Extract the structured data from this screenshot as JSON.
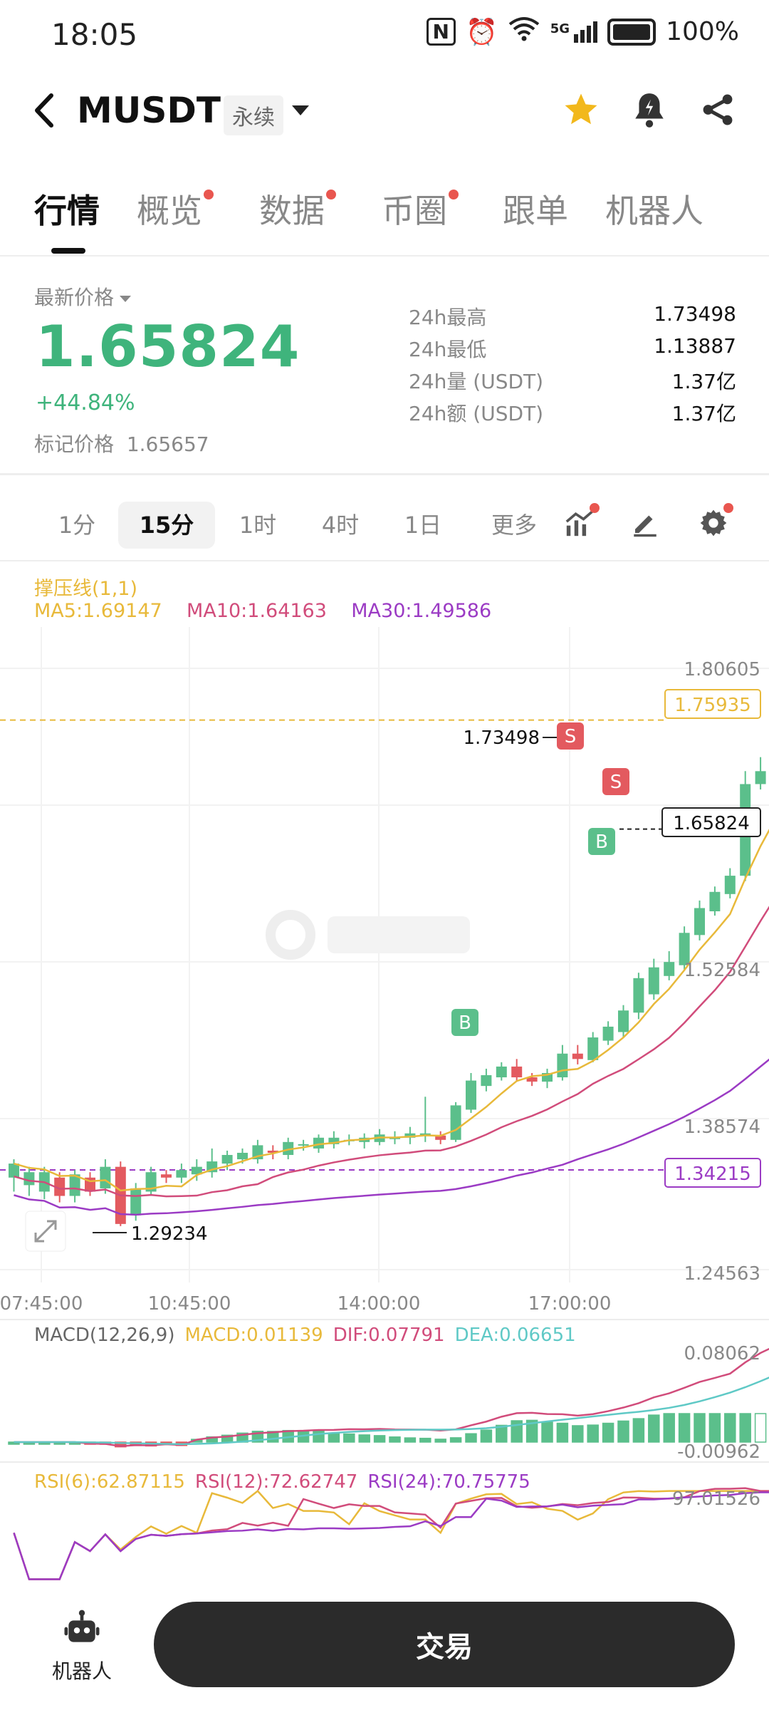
{
  "status_bar": {
    "time": "18:05",
    "network": "5G",
    "battery": "100%"
  },
  "header": {
    "symbol": "MUSDT",
    "contract_type": "永续",
    "icons": [
      "back-icon",
      "star-icon",
      "bell-icon",
      "share-icon"
    ]
  },
  "tabs": [
    {
      "label": "行情",
      "active": true,
      "dot": false
    },
    {
      "label": "概览",
      "active": false,
      "dot": true
    },
    {
      "label": "数据",
      "active": false,
      "dot": true
    },
    {
      "label": "币圈",
      "active": false,
      "dot": true
    },
    {
      "label": "跟单",
      "active": false,
      "dot": false
    },
    {
      "label": "机器人",
      "active": false,
      "dot": false
    }
  ],
  "ticker": {
    "last_price_label": "最新价格",
    "last_price": "1.65824",
    "change": "+44.84%",
    "mark_price_label": "标记价格",
    "mark_price": "1.65657",
    "stats": [
      {
        "label": "24h最高",
        "value": "1.73498"
      },
      {
        "label": "24h最低",
        "value": "1.13887"
      },
      {
        "label": "24h量 (USDT)",
        "value": "1.37亿"
      },
      {
        "label": "24h额 (USDT)",
        "value": "1.37亿"
      }
    ]
  },
  "intervals": [
    {
      "label": "1分",
      "active": false
    },
    {
      "label": "15分",
      "active": true
    },
    {
      "label": "1时",
      "active": false
    },
    {
      "label": "4时",
      "active": false
    },
    {
      "label": "1日",
      "active": false
    },
    {
      "label": "更多",
      "active": false
    }
  ],
  "indicators": {
    "support_line": "撑压线(1,1)",
    "ma5": "MA5:1.69147",
    "ma10": "MA10:1.64163",
    "ma30": "MA30:1.49586",
    "macd_params": "MACD(12,26,9)",
    "macd": "MACD:0.01139",
    "dif": "DIF:0.07791",
    "dea": "DEA:0.06651",
    "rsi6": "RSI(6):62.87115",
    "rsi12": "RSI(12):72.62747",
    "rsi24": "RSI(24):70.75775"
  },
  "colors": {
    "up": "#5bbf8b",
    "down": "#e35a5f",
    "ma5": "#e8b93a",
    "ma10": "#d14c7b",
    "ma30": "#9b3bc4",
    "dea": "#5fc9c6"
  },
  "chart_data": {
    "type": "candlestick",
    "price_axis_labels": [
      "1.80605",
      "1.52584",
      "1.38574",
      "1.24563"
    ],
    "support_level": "1.75935",
    "resistance_level": "1.34215",
    "current_price_tag": "1.65824",
    "high_label": "1.73498",
    "low_label": "1.29234",
    "x_axis_labels": [
      "07:45:00",
      "10:45:00",
      "14:00:00",
      "17:00:00"
    ],
    "macd_axis_labels": [
      "0.08062",
      "-0.00962"
    ],
    "rsi_axis_label": "97.01526",
    "signals": [
      "S",
      "S",
      "B",
      "B"
    ],
    "candles": [
      [
        1.335,
        1.348,
        1.322,
        1.352
      ],
      [
        1.328,
        1.34,
        1.318,
        1.345
      ],
      [
        1.322,
        1.34,
        1.315,
        1.345
      ],
      [
        1.335,
        1.318,
        1.312,
        1.34
      ],
      [
        1.318,
        1.338,
        1.312,
        1.342
      ],
      [
        1.335,
        1.322,
        1.318,
        1.34
      ],
      [
        1.325,
        1.345,
        1.32,
        1.352
      ],
      [
        1.345,
        1.292,
        1.29,
        1.35
      ],
      [
        1.3,
        1.325,
        1.295,
        1.33
      ],
      [
        1.322,
        1.34,
        1.318,
        1.345
      ],
      [
        1.338,
        1.335,
        1.33,
        1.342
      ],
      [
        1.335,
        1.342,
        1.33,
        1.348
      ],
      [
        1.338,
        1.345,
        1.332,
        1.352
      ],
      [
        1.34,
        1.35,
        1.335,
        1.362
      ],
      [
        1.348,
        1.356,
        1.342,
        1.36
      ],
      [
        1.352,
        1.358,
        1.348,
        1.362
      ],
      [
        1.352,
        1.365,
        1.348,
        1.37
      ],
      [
        1.36,
        1.358,
        1.352,
        1.365
      ],
      [
        1.356,
        1.368,
        1.352,
        1.372
      ],
      [
        1.365,
        1.366,
        1.36,
        1.37
      ],
      [
        1.362,
        1.372,
        1.358,
        1.375
      ],
      [
        1.366,
        1.372,
        1.362,
        1.378
      ],
      [
        1.37,
        1.37,
        1.365,
        1.375
      ],
      [
        1.368,
        1.372,
        1.362,
        1.376
      ],
      [
        1.368,
        1.375,
        1.365,
        1.38
      ],
      [
        1.372,
        1.372,
        1.366,
        1.378
      ],
      [
        1.372,
        1.376,
        1.366,
        1.382
      ],
      [
        1.374,
        1.376,
        1.368,
        1.41
      ],
      [
        1.374,
        1.37,
        1.366,
        1.378
      ],
      [
        1.37,
        1.402,
        1.368,
        1.405
      ],
      [
        1.398,
        1.425,
        1.395,
        1.432
      ],
      [
        1.42,
        1.43,
        1.415,
        1.436
      ],
      [
        1.428,
        1.438,
        1.425,
        1.442
      ],
      [
        1.438,
        1.428,
        1.424,
        1.445
      ],
      [
        1.428,
        1.424,
        1.42,
        1.432
      ],
      [
        1.424,
        1.432,
        1.418,
        1.436
      ],
      [
        1.428,
        1.45,
        1.425,
        1.458
      ],
      [
        1.45,
        1.445,
        1.44,
        1.458
      ],
      [
        1.444,
        1.465,
        1.442,
        1.47
      ],
      [
        1.462,
        1.475,
        1.458,
        1.48
      ],
      [
        1.47,
        1.49,
        1.465,
        1.495
      ],
      [
        1.488,
        1.52,
        1.482,
        1.525
      ],
      [
        1.505,
        1.53,
        1.5,
        1.538
      ],
      [
        1.522,
        1.535,
        1.518,
        1.545
      ],
      [
        1.532,
        1.562,
        1.528,
        1.568
      ],
      [
        1.56,
        1.585,
        1.555,
        1.592
      ],
      [
        1.582,
        1.6,
        1.578,
        1.605
      ],
      [
        1.598,
        1.615,
        1.594,
        1.622
      ],
      [
        1.615,
        1.7,
        1.61,
        1.712
      ],
      [
        1.7,
        1.712,
        1.695,
        1.725
      ],
      [
        1.708,
        1.715,
        1.64,
        1.725
      ],
      [
        1.712,
        1.712,
        1.705,
        1.735
      ],
      [
        1.712,
        1.682,
        1.675,
        1.735
      ],
      [
        1.684,
        1.658,
        1.65,
        1.69
      ]
    ]
  },
  "bottom": {
    "robot_label": "机器人",
    "trade_label": "交易"
  }
}
